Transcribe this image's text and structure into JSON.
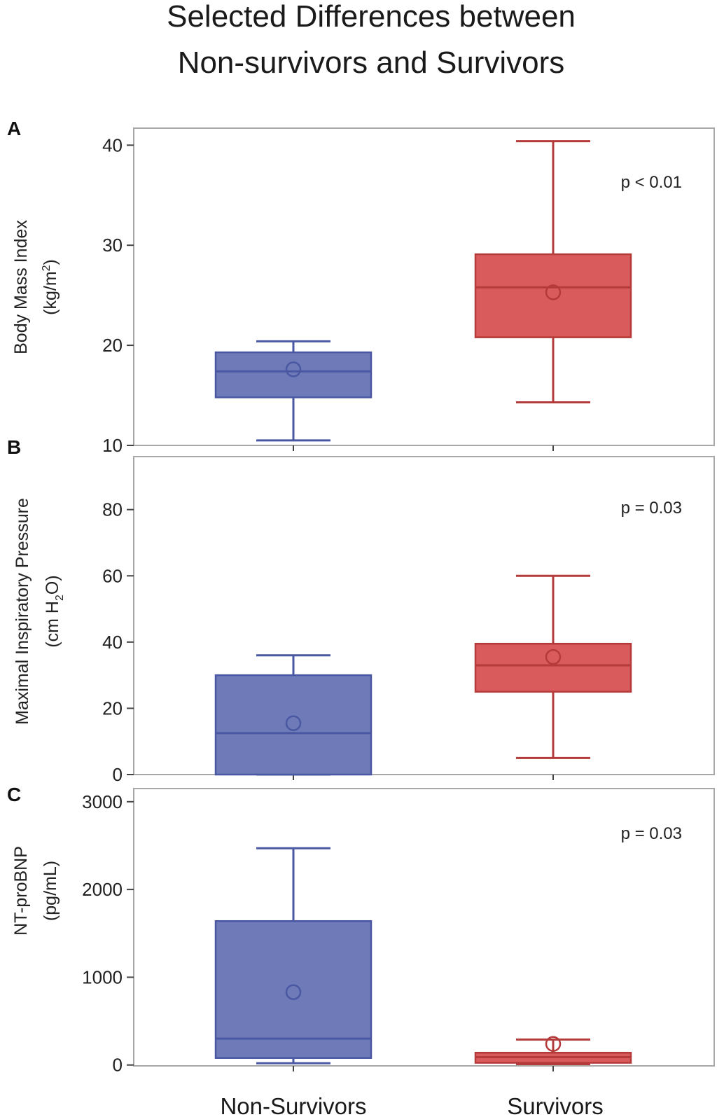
{
  "figure": {
    "title_line1": "Selected Differences between",
    "title_line2": "Non-survivors and Survivors"
  },
  "colors": {
    "non_survivors_fill": "#6e7bb8",
    "non_survivors_line": "#4a58a3",
    "survivors_fill": "#d95b5b",
    "survivors_line": "#b53a3a",
    "frame": "#a8a8a8"
  },
  "chart_data": [
    {
      "type": "box",
      "panel": "A",
      "ylabel_line1": "Body Mass Index",
      "ylabel_line2_pre": "(kg/m",
      "ylabel_line2_sup": "2",
      "ylabel_line2_post": ")",
      "ylim": [
        10,
        41.7
      ],
      "yticks": [
        10,
        20,
        30,
        40
      ],
      "annotation": "p < 0.01",
      "categories": [
        "Non-Survivors",
        "Survivors"
      ],
      "series": [
        {
          "name": "Non-Survivors",
          "min": 10.5,
          "q1": 14.8,
          "median": 17.4,
          "q3": 19.3,
          "max": 20.4,
          "mean": 17.6
        },
        {
          "name": "Survivors",
          "min": 14.3,
          "q1": 20.8,
          "median": 25.8,
          "q3": 29.1,
          "max": 40.4,
          "mean": 25.3
        }
      ]
    },
    {
      "type": "box",
      "panel": "B",
      "ylabel_line1": "Maximal Inspiratory Pressure",
      "ylabel_line2_pre": "(cm H",
      "ylabel_line2_sub": "2",
      "ylabel_line2_post": "O)",
      "ylim": [
        0,
        96
      ],
      "yticks": [
        0,
        20,
        40,
        60,
        80
      ],
      "annotation": "p = 0.03",
      "categories": [
        "Non-Survivors",
        "Survivors"
      ],
      "series": [
        {
          "name": "Non-Survivors",
          "min": 0,
          "q1": 0,
          "median": 12.5,
          "q3": 30,
          "max": 36,
          "mean": 15.5
        },
        {
          "name": "Survivors",
          "min": 5,
          "q1": 25,
          "median": 33,
          "q3": 39.5,
          "max": 60,
          "mean": 35.5
        }
      ]
    },
    {
      "type": "box",
      "panel": "C",
      "ylabel_line1": "NT-proBNP",
      "ylabel_line2": "(pg/mL)",
      "ylim": [
        -10,
        3150
      ],
      "yticks": [
        0,
        1000,
        2000,
        3000
      ],
      "annotation": "p = 0.03",
      "categories": [
        "Non-Survivors",
        "Survivors"
      ],
      "series": [
        {
          "name": "Non-Survivors",
          "min": 20,
          "q1": 80,
          "median": 300,
          "q3": 1640,
          "max": 2470,
          "mean": 830
        },
        {
          "name": "Survivors",
          "min": 10,
          "q1": 25,
          "median": 90,
          "q3": 140,
          "max": 290,
          "mean": 240
        }
      ]
    }
  ]
}
